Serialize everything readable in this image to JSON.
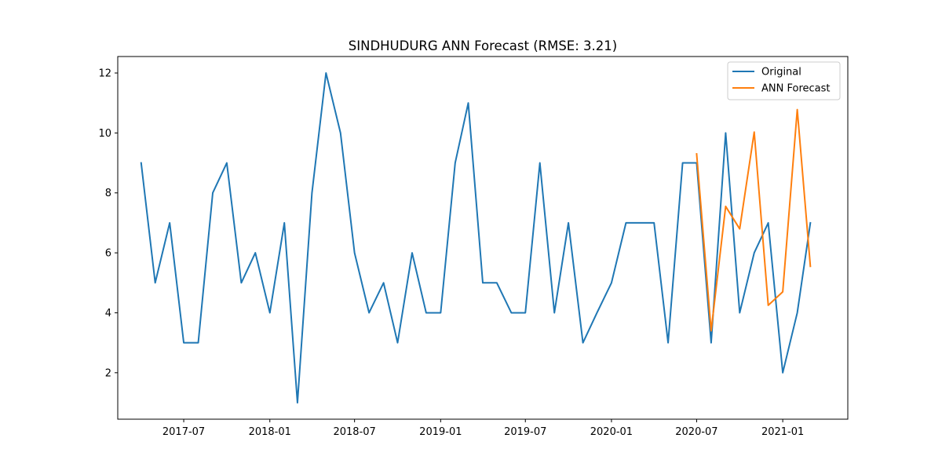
{
  "chart_data": {
    "type": "line",
    "title": "SINDHUDURG ANN Forecast (RMSE: 3.21)",
    "xlabel": "",
    "ylabel": "",
    "x_axis": "date",
    "xlim": [
      "2017-02-10",
      "2021-05-20"
    ],
    "ylim": [
      0.45,
      12.55
    ],
    "x_ticks": [
      "2017-07",
      "2018-01",
      "2018-07",
      "2019-01",
      "2019-07",
      "2020-01",
      "2020-07",
      "2021-01"
    ],
    "y_ticks": [
      2,
      4,
      6,
      8,
      10,
      12
    ],
    "grid": false,
    "legend_position": "upper-right",
    "series": [
      {
        "name": "Original",
        "color": "#1f77b4",
        "x": [
          "2017-04",
          "2017-05",
          "2017-06",
          "2017-07",
          "2017-08",
          "2017-09",
          "2017-10",
          "2017-11",
          "2017-12",
          "2018-01",
          "2018-02",
          "2018-03",
          "2018-04",
          "2018-05",
          "2018-06",
          "2018-07",
          "2018-08",
          "2018-09",
          "2018-10",
          "2018-11",
          "2018-12",
          "2019-01",
          "2019-02",
          "2019-03",
          "2019-04",
          "2019-05",
          "2019-06",
          "2019-07",
          "2019-08",
          "2019-09",
          "2019-10",
          "2019-11",
          "2019-12",
          "2020-01",
          "2020-02",
          "2020-03",
          "2020-04",
          "2020-05",
          "2020-06",
          "2020-07",
          "2020-08",
          "2020-09",
          "2020-10",
          "2020-11",
          "2020-12",
          "2021-01",
          "2021-02",
          "2021-03"
        ],
        "values": [
          9,
          5,
          7,
          3,
          3,
          8,
          9,
          5,
          6,
          4,
          7,
          1,
          8,
          12,
          10,
          6,
          4,
          5,
          3,
          6,
          4,
          4,
          9,
          11,
          5,
          5,
          4,
          4,
          9,
          4,
          7,
          3,
          4,
          5,
          7,
          7,
          7,
          3,
          9,
          9,
          3,
          10,
          4,
          6,
          7,
          2,
          4,
          7
        ]
      },
      {
        "name": "ANN Forecast",
        "color": "#ff7f0e",
        "x": [
          "2020-07",
          "2020-08",
          "2020-09",
          "2020-10",
          "2020-11",
          "2020-12",
          "2021-01",
          "2021-02",
          "2021-03"
        ],
        "values": [
          9.3,
          3.4,
          7.55,
          6.8,
          10.03,
          4.25,
          4.7,
          10.78,
          5.55
        ]
      }
    ]
  }
}
